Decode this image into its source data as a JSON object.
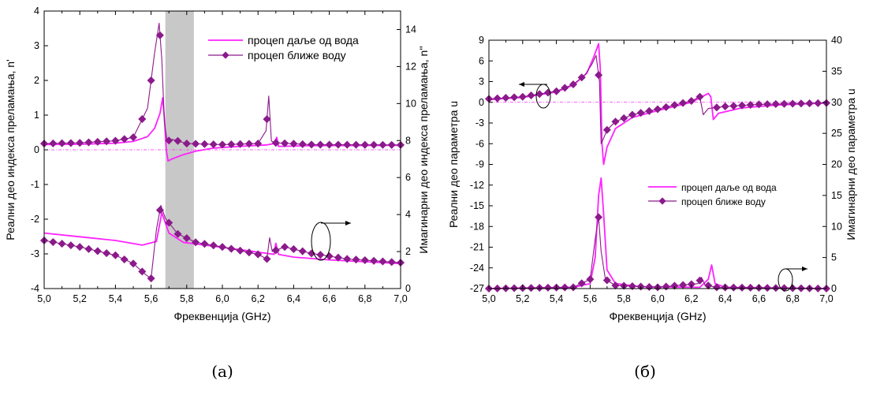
{
  "colors": {
    "magenta": "#ff22ff",
    "purple": "#8b1a8b",
    "shade": "#c8c8c8",
    "axis": "#000000"
  },
  "captions": {
    "a": "(а)",
    "b": "(б)"
  },
  "chart_data": [
    {
      "type": "line",
      "x_label": "Фреквенција (GHz)",
      "y_left_label": "Реални део индекса преламања, n'",
      "y_right_label": "Имагинарни део индекса преламања, n''",
      "xlim": [
        5.0,
        7.0
      ],
      "ylim_left": [
        -4,
        4
      ],
      "ylim_right": [
        0,
        15
      ],
      "x_ticks": [
        "5,0",
        "5,2",
        "5,4",
        "5,6",
        "5,8",
        "6,0",
        "6,2",
        "6,4",
        "6,6",
        "6,8",
        "7,0"
      ],
      "y_left_ticks": [
        "-4",
        "-3",
        "-2",
        "-1",
        "0",
        "1",
        "2",
        "3",
        "4"
      ],
      "y_right_ticks": [
        "0",
        "2",
        "4",
        "6",
        "8",
        "10",
        "12",
        "14"
      ],
      "shaded_band_x": [
        5.68,
        5.84
      ],
      "legend": [
        "процеп даље од вода",
        "процеп ближе воду"
      ],
      "series": [
        {
          "name": "процеп даље од вода",
          "part": "real",
          "axis": "left",
          "marker": "none",
          "color": "magenta",
          "points": [
            [
              5.0,
              0.15
            ],
            [
              5.2,
              0.16
            ],
            [
              5.4,
              0.19
            ],
            [
              5.5,
              0.24
            ],
            [
              5.58,
              0.38
            ],
            [
              5.62,
              0.62
            ],
            [
              5.65,
              1.05
            ],
            [
              5.665,
              1.5
            ],
            [
              5.675,
              0.9
            ],
            [
              5.685,
              0.0
            ],
            [
              5.695,
              -0.32
            ],
            [
              5.72,
              -0.26
            ],
            [
              5.78,
              -0.14
            ],
            [
              5.85,
              -0.04
            ],
            [
              5.95,
              0.05
            ],
            [
              6.1,
              0.1
            ],
            [
              6.25,
              0.14
            ],
            [
              6.29,
              0.18
            ],
            [
              6.305,
              0.36
            ],
            [
              6.315,
              0.1
            ],
            [
              6.33,
              0.1
            ],
            [
              6.5,
              0.12
            ],
            [
              7.0,
              0.13
            ]
          ]
        },
        {
          "name": "процеп ближе воду",
          "part": "real",
          "axis": "left",
          "marker": "diamond",
          "color": "purple",
          "points": [
            [
              5.0,
              0.18
            ],
            [
              5.2,
              0.2
            ],
            [
              5.4,
              0.26
            ],
            [
              5.5,
              0.36
            ],
            [
              5.58,
              1.2
            ],
            [
              5.62,
              2.8
            ],
            [
              5.645,
              3.65
            ],
            [
              5.66,
              2.6
            ],
            [
              5.675,
              0.8
            ],
            [
              5.69,
              0.25
            ],
            [
              5.72,
              0.3
            ],
            [
              5.8,
              0.18
            ],
            [
              6.0,
              0.15
            ],
            [
              6.2,
              0.18
            ],
            [
              6.245,
              0.55
            ],
            [
              6.26,
              1.55
            ],
            [
              6.275,
              0.25
            ],
            [
              6.3,
              0.2
            ],
            [
              6.5,
              0.15
            ],
            [
              7.0,
              0.14
            ]
          ],
          "markers_x": [
            5.0,
            5.05,
            5.1,
            5.15,
            5.2,
            5.25,
            5.3,
            5.35,
            5.4,
            5.45,
            5.5,
            5.55,
            5.6,
            5.65,
            5.7,
            5.75,
            5.8,
            5.85,
            5.9,
            5.95,
            6.0,
            6.05,
            6.1,
            6.15,
            6.2,
            6.25,
            6.3,
            6.35,
            6.4,
            6.45,
            6.5,
            6.55,
            6.6,
            6.65,
            6.7,
            6.75,
            6.8,
            6.85,
            6.9,
            6.95,
            7.0
          ]
        },
        {
          "name": "процеп даље од вода",
          "part": "imag",
          "axis": "right",
          "marker": "none",
          "color": "magenta",
          "points": [
            [
              5.0,
              3.0
            ],
            [
              5.2,
              2.8
            ],
            [
              5.4,
              2.6
            ],
            [
              5.55,
              2.35
            ],
            [
              5.63,
              2.55
            ],
            [
              5.66,
              4.1
            ],
            [
              5.675,
              3.7
            ],
            [
              5.7,
              3.0
            ],
            [
              5.78,
              2.5
            ],
            [
              5.9,
              2.35
            ],
            [
              6.1,
              2.1
            ],
            [
              6.25,
              1.9
            ],
            [
              6.29,
              1.85
            ],
            [
              6.3,
              2.45
            ],
            [
              6.315,
              1.85
            ],
            [
              6.4,
              1.7
            ],
            [
              6.6,
              1.55
            ],
            [
              7.0,
              1.35
            ]
          ]
        },
        {
          "name": "процеп ближе воду",
          "part": "imag",
          "axis": "right",
          "marker": "diamond",
          "color": "purple",
          "points": [
            [
              5.0,
              2.6
            ],
            [
              5.2,
              2.25
            ],
            [
              5.4,
              1.8
            ],
            [
              5.5,
              1.35
            ],
            [
              5.57,
              0.75
            ],
            [
              5.6,
              0.55
            ],
            [
              5.63,
              3.2
            ],
            [
              5.655,
              4.5
            ],
            [
              5.68,
              3.8
            ],
            [
              5.75,
              2.95
            ],
            [
              5.85,
              2.5
            ],
            [
              6.0,
              2.25
            ],
            [
              6.2,
              1.85
            ],
            [
              6.25,
              1.6
            ],
            [
              6.265,
              2.75
            ],
            [
              6.28,
              2.0
            ],
            [
              6.35,
              2.25
            ],
            [
              6.5,
              1.9
            ],
            [
              6.7,
              1.6
            ],
            [
              7.0,
              1.4
            ]
          ],
          "markers_x": [
            5.0,
            5.05,
            5.1,
            5.15,
            5.2,
            5.25,
            5.3,
            5.35,
            5.4,
            5.45,
            5.5,
            5.55,
            5.6,
            5.65,
            5.7,
            5.75,
            5.8,
            5.85,
            5.9,
            5.95,
            6.0,
            6.05,
            6.1,
            6.15,
            6.2,
            6.25,
            6.3,
            6.35,
            6.4,
            6.45,
            6.5,
            6.55,
            6.6,
            6.65,
            6.7,
            6.75,
            6.8,
            6.85,
            6.9,
            6.95,
            7.0
          ]
        }
      ]
    },
    {
      "type": "line",
      "x_label": "Фреквенција (GHz)",
      "y_left_label": "Реални део параметра u",
      "y_right_label": "Имагинарни део параметра u",
      "xlim": [
        5.0,
        7.0
      ],
      "ylim_left": [
        -27,
        9
      ],
      "ylim_right": [
        0,
        40
      ],
      "x_ticks": [
        "5,0",
        "5,2",
        "5,4",
        "5,6",
        "5,8",
        "6,0",
        "6,2",
        "6,4",
        "6,6",
        "6,8",
        "7,0"
      ],
      "y_left_ticks": [
        "-27",
        "-24",
        "-21",
        "-18",
        "-15",
        "-12",
        "-9",
        "-6",
        "-3",
        "0",
        "3",
        "6",
        "9"
      ],
      "y_right_ticks": [
        "0",
        "5",
        "10",
        "15",
        "20",
        "25",
        "30",
        "35",
        "40"
      ],
      "legend": [
        "процеп даље од вода",
        "процеп ближе воду"
      ],
      "series": [
        {
          "name": "процеп даље од вода",
          "part": "real",
          "axis": "left",
          "marker": "none",
          "color": "magenta",
          "points": [
            [
              5.0,
              0.4
            ],
            [
              5.2,
              0.7
            ],
            [
              5.4,
              1.5
            ],
            [
              5.5,
              2.5
            ],
            [
              5.58,
              4.2
            ],
            [
              5.62,
              6.5
            ],
            [
              5.65,
              8.5
            ],
            [
              5.66,
              5.0
            ],
            [
              5.67,
              -6.0
            ],
            [
              5.68,
              -9.0
            ],
            [
              5.7,
              -6.5
            ],
            [
              5.75,
              -3.8
            ],
            [
              5.85,
              -2.2
            ],
            [
              6.0,
              -1.2
            ],
            [
              6.2,
              0.0
            ],
            [
              6.3,
              1.3
            ],
            [
              6.315,
              0.8
            ],
            [
              6.33,
              -2.5
            ],
            [
              6.36,
              -1.6
            ],
            [
              6.5,
              -0.8
            ],
            [
              6.7,
              -0.4
            ],
            [
              7.0,
              -0.1
            ]
          ]
        },
        {
          "name": "процеп ближе воду",
          "part": "real",
          "axis": "left",
          "marker": "diamond",
          "color": "purple",
          "points": [
            [
              5.0,
              0.5
            ],
            [
              5.2,
              0.8
            ],
            [
              5.4,
              1.6
            ],
            [
              5.5,
              2.6
            ],
            [
              5.57,
              4.0
            ],
            [
              5.61,
              5.5
            ],
            [
              5.635,
              6.8
            ],
            [
              5.655,
              3.0
            ],
            [
              5.665,
              -6.0
            ],
            [
              5.675,
              -5.5
            ],
            [
              5.7,
              -4.0
            ],
            [
              5.75,
              -2.8
            ],
            [
              5.85,
              -1.8
            ],
            [
              6.0,
              -1.0
            ],
            [
              6.2,
              0.2
            ],
            [
              6.25,
              0.8
            ],
            [
              6.27,
              -1.8
            ],
            [
              6.3,
              -0.9
            ],
            [
              6.4,
              -0.6
            ],
            [
              6.6,
              -0.3
            ],
            [
              7.0,
              -0.1
            ]
          ],
          "markers_x": [
            5.0,
            5.05,
            5.1,
            5.15,
            5.2,
            5.25,
            5.3,
            5.35,
            5.4,
            5.45,
            5.5,
            5.55,
            5.65,
            5.7,
            5.75,
            5.8,
            5.85,
            5.9,
            5.95,
            6.0,
            6.05,
            6.1,
            6.15,
            6.2,
            6.25,
            6.35,
            6.4,
            6.45,
            6.5,
            6.55,
            6.6,
            6.65,
            6.7,
            6.75,
            6.8,
            6.85,
            6.9,
            6.95,
            7.0
          ]
        },
        {
          "name": "процеп даље од вода",
          "part": "imag",
          "axis": "right",
          "marker": "none",
          "color": "magenta",
          "points": [
            [
              5.0,
              0.0
            ],
            [
              5.5,
              0.2
            ],
            [
              5.6,
              0.8
            ],
            [
              5.63,
              5.0
            ],
            [
              5.65,
              15.0
            ],
            [
              5.665,
              17.8
            ],
            [
              5.68,
              12.0
            ],
            [
              5.7,
              3.0
            ],
            [
              5.75,
              0.8
            ],
            [
              5.9,
              0.3
            ],
            [
              6.25,
              0.2
            ],
            [
              6.3,
              1.5
            ],
            [
              6.32,
              3.8
            ],
            [
              6.34,
              0.8
            ],
            [
              6.4,
              0.2
            ],
            [
              7.0,
              0.0
            ]
          ]
        },
        {
          "name": "процеп ближе воду",
          "part": "imag",
          "axis": "right",
          "marker": "diamond",
          "color": "purple",
          "points": [
            [
              5.0,
              0.0
            ],
            [
              5.5,
              0.2
            ],
            [
              5.6,
              1.5
            ],
            [
              5.63,
              8.0
            ],
            [
              5.65,
              11.5
            ],
            [
              5.665,
              6.0
            ],
            [
              5.69,
              1.5
            ],
            [
              5.75,
              0.5
            ],
            [
              6.0,
              0.2
            ],
            [
              6.24,
              0.8
            ],
            [
              6.26,
              1.8
            ],
            [
              6.28,
              0.6
            ],
            [
              6.35,
              0.2
            ],
            [
              7.0,
              0.0
            ]
          ],
          "markers_x": [
            5.0,
            5.05,
            5.1,
            5.15,
            5.2,
            5.25,
            5.3,
            5.35,
            5.4,
            5.45,
            5.5,
            5.55,
            5.6,
            5.65,
            5.7,
            5.75,
            5.8,
            5.85,
            5.9,
            5.95,
            6.0,
            6.05,
            6.1,
            6.15,
            6.2,
            6.25,
            6.3,
            6.35,
            6.4,
            6.45,
            6.5,
            6.55,
            6.6,
            6.65,
            6.7,
            6.75,
            6.8,
            6.85,
            6.9,
            6.95,
            7.0
          ]
        }
      ]
    }
  ]
}
